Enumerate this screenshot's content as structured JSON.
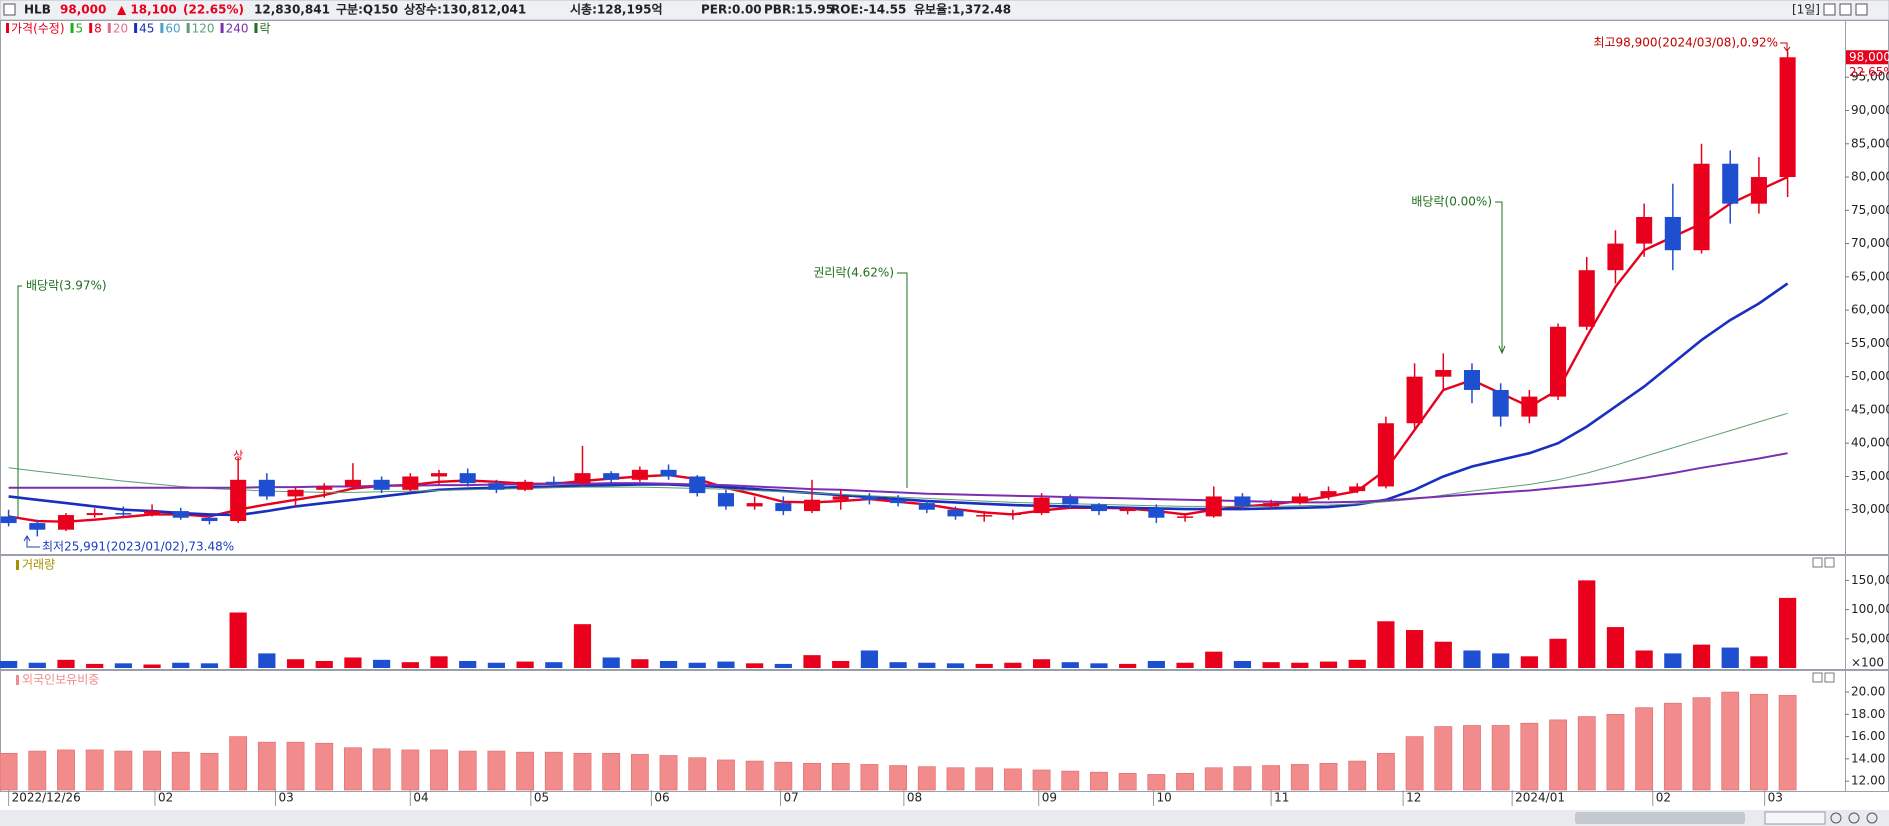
{
  "header": {
    "symbol": "HLB",
    "price": "98,000",
    "change": "▲ 18,100",
    "rate": "(22.65%)",
    "volume": "12,830,841",
    "items": [
      "구분:Q150",
      "상장수:130,812,041",
      "시총:128,195억",
      "PER:0.00",
      "PBR:15.95",
      "ROE:-14.55",
      "유보율:1,372.48"
    ],
    "period": "[1일]"
  },
  "chart_data": [
    {
      "type": "candlestick",
      "series": [
        {
          "name": "가격(수정)",
          "color": "#e8001c",
          "up_color": "#e8001c",
          "down_color": "#1f4fd1",
          "open": [
            29000,
            28000,
            27000,
            29200,
            29500,
            29400,
            29800,
            28800,
            28300,
            34500,
            32000,
            33000,
            33500,
            34500,
            33000,
            35000,
            35500,
            34000,
            33000,
            34200,
            34000,
            35500,
            34500,
            36000,
            35000,
            32500,
            30500,
            31000,
            29800,
            31500,
            32000,
            31500,
            31000,
            30000,
            29000,
            29200,
            29500,
            31800,
            30800,
            29800,
            30200,
            28800,
            29000,
            32000,
            30500,
            31000,
            32000,
            32800,
            33500,
            43000,
            50000,
            51000,
            48000,
            44000,
            47000,
            57500,
            66000,
            70000,
            74000,
            69000,
            82000,
            76000,
            80000
          ],
          "high": [
            30000,
            28500,
            29500,
            30200,
            30500,
            30800,
            30300,
            29200,
            37800,
            35500,
            33500,
            34000,
            37000,
            35000,
            35500,
            36000,
            36200,
            34500,
            34500,
            35000,
            39600,
            35800,
            36500,
            36800,
            35200,
            33000,
            32000,
            32000,
            34500,
            33000,
            32500,
            32200,
            31500,
            30500,
            29800,
            30000,
            32500,
            32300,
            31000,
            30500,
            30800,
            29500,
            33500,
            32500,
            31500,
            32500,
            33500,
            34000,
            44000,
            52000,
            53500,
            52000,
            49000,
            48000,
            58000,
            68000,
            72000,
            76000,
            79000,
            85000,
            84000,
            83000,
            98900
          ],
          "low": [
            27500,
            25991,
            26800,
            28800,
            29000,
            29000,
            28500,
            27800,
            28000,
            31500,
            30500,
            31800,
            33000,
            32500,
            32800,
            33800,
            33500,
            32500,
            32800,
            33500,
            33500,
            34000,
            34200,
            34500,
            32000,
            30000,
            30000,
            29200,
            29500,
            30000,
            30800,
            30500,
            29500,
            28500,
            28200,
            28500,
            29200,
            30200,
            29200,
            29300,
            28000,
            28200,
            28800,
            30000,
            30200,
            30800,
            31500,
            32500,
            33200,
            42000,
            48000,
            46000,
            42500,
            43000,
            46500,
            57000,
            64000,
            68000,
            66000,
            68500,
            73000,
            74500,
            77000
          ],
          "close": [
            28000,
            27000,
            29200,
            29500,
            29400,
            29800,
            28800,
            28300,
            34500,
            32000,
            33000,
            33500,
            34500,
            33000,
            35000,
            35500,
            34000,
            33000,
            34200,
            34000,
            35500,
            34500,
            36000,
            35000,
            32500,
            30500,
            31000,
            29800,
            31500,
            32000,
            31500,
            31000,
            30000,
            29000,
            29200,
            29500,
            31800,
            30800,
            29800,
            30200,
            28800,
            29000,
            32000,
            30500,
            31000,
            32000,
            32800,
            33500,
            43000,
            50000,
            51000,
            48000,
            44000,
            47000,
            57500,
            66000,
            70000,
            74000,
            69000,
            82000,
            76000,
            80000,
            98000
          ],
          "last_label": "98,000",
          "last_rate_label": "22.65%"
        }
      ],
      "moving_averages": [
        {
          "name": "5",
          "color": "#22a822"
        },
        {
          "name": "8",
          "color": "#e8001c",
          "values": [
            29000,
            28300,
            28200,
            28500,
            28900,
            29300,
            29300,
            29000,
            30000,
            30800,
            31500,
            32200,
            33200,
            33600,
            33700,
            34200,
            34400,
            34200,
            33900,
            33900,
            34300,
            34700,
            35000,
            35200,
            34600,
            33300,
            32300,
            31200,
            31100,
            31300,
            31600,
            31200,
            30800,
            30100,
            29600,
            29300,
            29900,
            30300,
            30300,
            30200,
            29800,
            29300,
            30000,
            30500,
            30800,
            31300,
            32000,
            32800,
            36000,
            42000,
            48000,
            49500,
            47500,
            45500,
            48000,
            56000,
            63500,
            69000,
            71000,
            73000,
            76000,
            78000,
            80000
          ]
        },
        {
          "name": "20",
          "color": "#e07090"
        },
        {
          "name": "45",
          "color": "#1a2fbf",
          "values": [
            32000,
            31500,
            31000,
            30500,
            30000,
            29800,
            29500,
            29300,
            29200,
            29800,
            30500,
            31000,
            31500,
            32000,
            32500,
            33000,
            33200,
            33300,
            33400,
            33500,
            33600,
            33700,
            33800,
            33800,
            33600,
            33400,
            33100,
            32800,
            32500,
            32200,
            31900,
            31600,
            31300,
            31100,
            30900,
            30700,
            30600,
            30500,
            30400,
            30300,
            30200,
            30100,
            30100,
            30100,
            30200,
            30300,
            30400,
            30800,
            31500,
            33000,
            35000,
            36500,
            37500,
            38500,
            40000,
            42500,
            45500,
            48500,
            52000,
            55500,
            58500,
            61000,
            64000
          ]
        },
        {
          "name": "60",
          "color": "#4aa0c8"
        },
        {
          "name": "120",
          "color": "#5aa070",
          "values": [
            36300,
            35800,
            35300,
            34800,
            34300,
            33900,
            33500,
            33200,
            33000,
            32800,
            32700,
            32600,
            32600,
            32700,
            32800,
            32900,
            33000,
            33100,
            33200,
            33300,
            33400,
            33400,
            33400,
            33300,
            33200,
            33100,
            32900,
            32700,
            32500,
            32300,
            32100,
            31900,
            31700,
            31500,
            31300,
            31100,
            31000,
            30900,
            30800,
            30700,
            30600,
            30500,
            30500,
            30500,
            30500,
            30600,
            30700,
            30900,
            31200,
            31600,
            32200,
            32800,
            33300,
            33800,
            34500,
            35500,
            36700,
            38000,
            39300,
            40600,
            41900,
            43200,
            44500
          ]
        },
        {
          "name": "240",
          "color": "#7a2fb0",
          "values": [
            33300,
            33300,
            33300,
            33300,
            33300,
            33300,
            33300,
            33300,
            33300,
            33400,
            33400,
            33500,
            33500,
            33600,
            33600,
            33700,
            33700,
            33800,
            33800,
            33900,
            33900,
            34000,
            34000,
            33900,
            33800,
            33700,
            33500,
            33300,
            33100,
            33000,
            32800,
            32600,
            32400,
            32300,
            32200,
            32100,
            32000,
            31900,
            31800,
            31700,
            31600,
            31500,
            31400,
            31300,
            31200,
            31100,
            31100,
            31200,
            31400,
            31700,
            32000,
            32300,
            32600,
            32900,
            33300,
            33700,
            34200,
            34800,
            35500,
            36300,
            37000,
            37700,
            38500
          ]
        }
      ],
      "ex_rights_legend": {
        "name": "락",
        "color": "#1f6f1f"
      },
      "annotations": [
        "배당락(3.97%)",
        "권리락(4.62%)",
        "배당락(0.00%)",
        "최고98,900(2024/03/08),0.92%",
        "최저25,991(2023/01/02),73.48%",
        "상"
      ],
      "ylim": [
        23500,
        103600
      ],
      "yticks": [
        {
          "value": 30000,
          "label": "30,000"
        },
        {
          "value": 35000,
          "label": "35,000"
        },
        {
          "value": 40000,
          "label": "40,000"
        },
        {
          "value": 45000,
          "label": "45,000"
        },
        {
          "value": 50000,
          "label": "50,000"
        },
        {
          "value": 55000,
          "label": "55,000"
        },
        {
          "value": 60000,
          "label": "60,000"
        },
        {
          "value": 65000,
          "label": "65,000"
        },
        {
          "value": 70000,
          "label": "70,000"
        },
        {
          "value": 75000,
          "label": "75,000"
        },
        {
          "value": 80000,
          "label": "80,000"
        },
        {
          "value": 85000,
          "label": "85,000"
        },
        {
          "value": 90000,
          "label": "90,000"
        },
        {
          "value": 95000,
          "label": "95,000"
        }
      ]
    },
    {
      "type": "bar",
      "title": "거래량",
      "values": [
        12000,
        9000,
        14000,
        7000,
        8000,
        6000,
        9000,
        8000,
        95000,
        25000,
        15000,
        12000,
        18000,
        14000,
        10000,
        20000,
        12000,
        9000,
        11000,
        10000,
        75000,
        18000,
        15000,
        12000,
        9000,
        11000,
        8000,
        7000,
        22000,
        12000,
        30000,
        10000,
        9000,
        8000,
        7000,
        9000,
        15000,
        10000,
        8000,
        7000,
        12000,
        9000,
        28000,
        12000,
        10000,
        9000,
        11000,
        14000,
        80000,
        65000,
        45000,
        30000,
        25000,
        20000,
        50000,
        150000,
        70000,
        30000,
        25000,
        40000,
        35000,
        20000,
        120000
      ],
      "unit_label": "×100",
      "ylim": [
        0,
        190000
      ],
      "yticks": [
        {
          "value": 50000,
          "label": "50,000"
        },
        {
          "value": 100000,
          "label": "100,000"
        },
        {
          "value": 150000,
          "label": "150,000"
        }
      ]
    },
    {
      "type": "bar",
      "title": "외국인보유비중",
      "color": "#f28b8b",
      "values": [
        14.5,
        14.7,
        14.8,
        14.8,
        14.7,
        14.7,
        14.6,
        14.5,
        16.0,
        15.5,
        15.5,
        15.4,
        15.0,
        14.9,
        14.8,
        14.8,
        14.7,
        14.7,
        14.6,
        14.6,
        14.5,
        14.5,
        14.4,
        14.3,
        14.1,
        13.9,
        13.8,
        13.7,
        13.6,
        13.6,
        13.5,
        13.4,
        13.3,
        13.2,
        13.2,
        13.1,
        13.0,
        12.9,
        12.8,
        12.7,
        12.6,
        12.7,
        13.2,
        13.3,
        13.4,
        13.5,
        13.6,
        13.8,
        14.5,
        16.0,
        16.9,
        17.0,
        17.0,
        17.2,
        17.5,
        17.8,
        18.0,
        18.6,
        19.0,
        19.5,
        20.0,
        19.8,
        19.7
      ],
      "ylim": [
        11.2,
        21.8
      ],
      "yticks": [
        {
          "value": 12,
          "label": "12.00"
        },
        {
          "value": 14,
          "label": "14.00"
        },
        {
          "value": 16,
          "label": "16.00"
        },
        {
          "value": 18,
          "label": "18.00"
        },
        {
          "value": 20,
          "label": "20.00"
        }
      ],
      "xlim": [
        -0.3,
        64
      ],
      "xticks": [
        {
          "value": 0,
          "label": "2022/12/26"
        },
        {
          "value": 5.1,
          "label": "02"
        },
        {
          "value": 9.3,
          "label": "03"
        },
        {
          "value": 14.0,
          "label": "04"
        },
        {
          "value": 18.2,
          "label": "05"
        },
        {
          "value": 22.4,
          "label": "06"
        },
        {
          "value": 26.9,
          "label": "07"
        },
        {
          "value": 31.2,
          "label": "08"
        },
        {
          "value": 35.9,
          "label": "09"
        },
        {
          "value": 39.9,
          "label": "10"
        },
        {
          "value": 44.0,
          "label": "11"
        },
        {
          "value": 48.6,
          "label": "12"
        },
        {
          "value": 52.4,
          "label": "2024/01"
        },
        {
          "value": 57.3,
          "label": "02"
        },
        {
          "value": 61.2,
          "label": "03"
        }
      ]
    }
  ]
}
